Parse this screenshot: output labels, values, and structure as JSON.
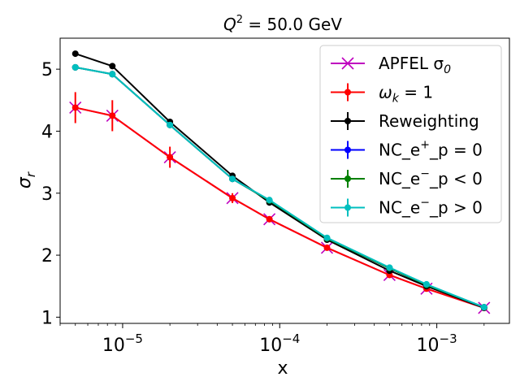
{
  "chart_data": {
    "type": "line",
    "title_main": "Q",
    "title_sup": "2",
    "title_rest": " = 50.0 GeV",
    "xlabel": "x",
    "ylabel_main": "σ",
    "ylabel_sub": "r",
    "x_scale": "log",
    "xlim": [
      4e-06,
      0.0029
    ],
    "ylim": [
      0.9,
      5.5
    ],
    "x_ticks": [
      {
        "value": 1e-05,
        "base": "10",
        "exp": "−5"
      },
      {
        "value": 0.0001,
        "base": "10",
        "exp": "−4"
      },
      {
        "value": 0.001,
        "base": "10",
        "exp": "−3"
      }
    ],
    "y_ticks": [
      {
        "value": 1,
        "label": "1"
      },
      {
        "value": 2,
        "label": "2"
      },
      {
        "value": 3,
        "label": "3"
      },
      {
        "value": 4,
        "label": "4"
      },
      {
        "value": 5,
        "label": "5"
      }
    ],
    "grid": false,
    "legend_position": "top-right",
    "x": [
      5e-06,
      8.6e-06,
      2e-05,
      5e-05,
      8.6e-05,
      0.0002,
      0.0005,
      0.00086,
      0.002
    ],
    "series": [
      {
        "legend_main": "APFEL σ",
        "legend_sub": "0",
        "legend_sup": "",
        "legend_rest": "",
        "color": "#bf00bf",
        "marker": "x",
        "values": [
          4.38,
          4.25,
          3.58,
          2.92,
          2.58,
          2.12,
          1.68,
          1.46,
          1.15
        ],
        "errors": []
      },
      {
        "legend_main": "ω",
        "legend_sub": "k",
        "legend_sup": "",
        "legend_rest": " = 1",
        "color": "#ff0000",
        "marker": "o",
        "values": [
          4.38,
          4.25,
          3.58,
          2.92,
          2.58,
          2.12,
          1.68,
          1.46,
          1.15
        ],
        "errors": [
          0.25,
          0.25,
          0.17,
          0.08,
          0.05,
          0.04,
          0.03,
          0.03,
          0.02
        ]
      },
      {
        "legend_main": "Reweighting",
        "legend_sub": "",
        "legend_sup": "",
        "legend_rest": "",
        "color": "#000000",
        "marker": "o",
        "values": [
          5.25,
          5.05,
          4.15,
          3.28,
          2.85,
          2.25,
          1.75,
          1.5,
          1.15
        ],
        "errors": [
          0.02,
          0.02,
          0.02,
          0.02,
          0.02,
          0.02,
          0.02,
          0.02,
          0.02
        ]
      },
      {
        "legend_main": "NC_e",
        "legend_sub": "",
        "legend_sup": "+",
        "legend_rest": "_p = 0",
        "color": "#0000ff",
        "marker": "o",
        "values": [
          5.03,
          4.92,
          4.1,
          3.23,
          2.88,
          2.27,
          1.79,
          1.52,
          1.16
        ],
        "errors": [
          0.03,
          0.03,
          0.03,
          0.03,
          0.03,
          0.03,
          0.03,
          0.03,
          0.03
        ]
      },
      {
        "legend_main": "NC_e",
        "legend_sub": "",
        "legend_sup": "−",
        "legend_rest": "_p < 0",
        "color": "#008000",
        "marker": "o",
        "values": [
          5.03,
          4.92,
          4.1,
          3.23,
          2.88,
          2.27,
          1.79,
          1.52,
          1.16
        ],
        "errors": [
          0.03,
          0.03,
          0.03,
          0.03,
          0.03,
          0.03,
          0.03,
          0.03,
          0.03
        ]
      },
      {
        "legend_main": "NC_e",
        "legend_sub": "",
        "legend_sup": "−",
        "legend_rest": "_p > 0",
        "color": "#00bfbf",
        "marker": "o",
        "values": [
          5.03,
          4.92,
          4.1,
          3.23,
          2.89,
          2.28,
          1.8,
          1.53,
          1.16
        ],
        "errors": [
          0.03,
          0.03,
          0.03,
          0.03,
          0.03,
          0.03,
          0.03,
          0.03,
          0.03
        ]
      }
    ]
  }
}
